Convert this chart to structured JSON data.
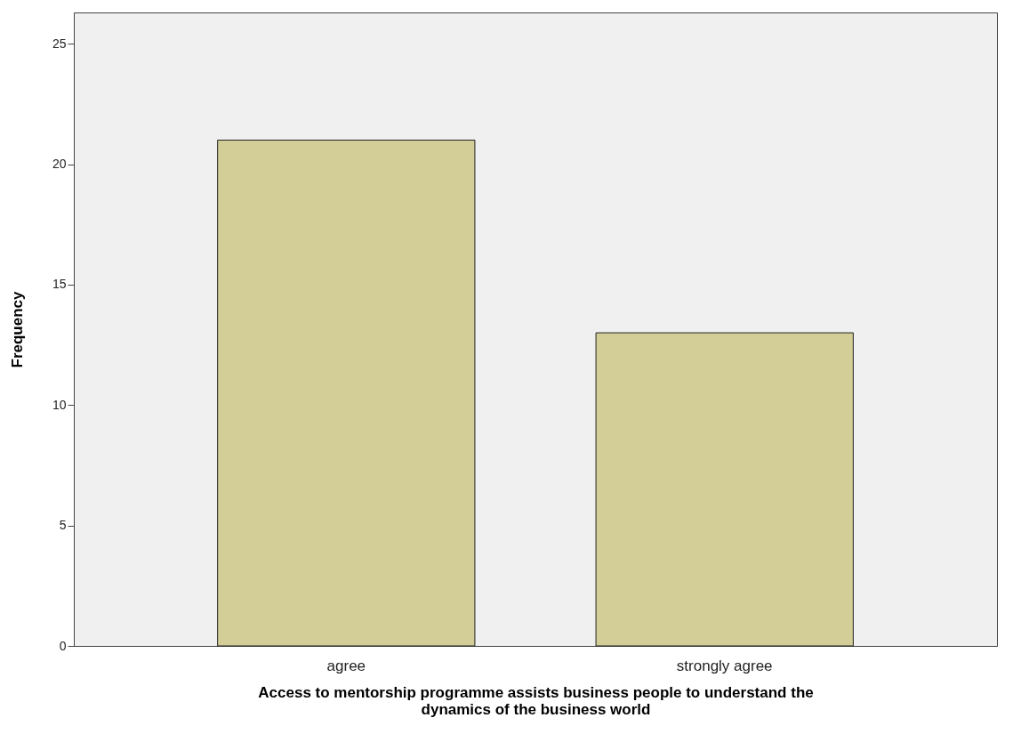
{
  "chart_data": {
    "type": "bar",
    "xlabel": "Access to mentorship programme assists business people to understand the dynamics of the business world",
    "ylabel": "Frequency",
    "categories": [
      "agree",
      "strongly agree"
    ],
    "values": [
      21,
      13
    ],
    "color": "#d3ce97",
    "ylim": [
      0,
      26.3
    ],
    "yticks": [
      0,
      5,
      10,
      15,
      20,
      25
    ],
    "grid": false
  }
}
